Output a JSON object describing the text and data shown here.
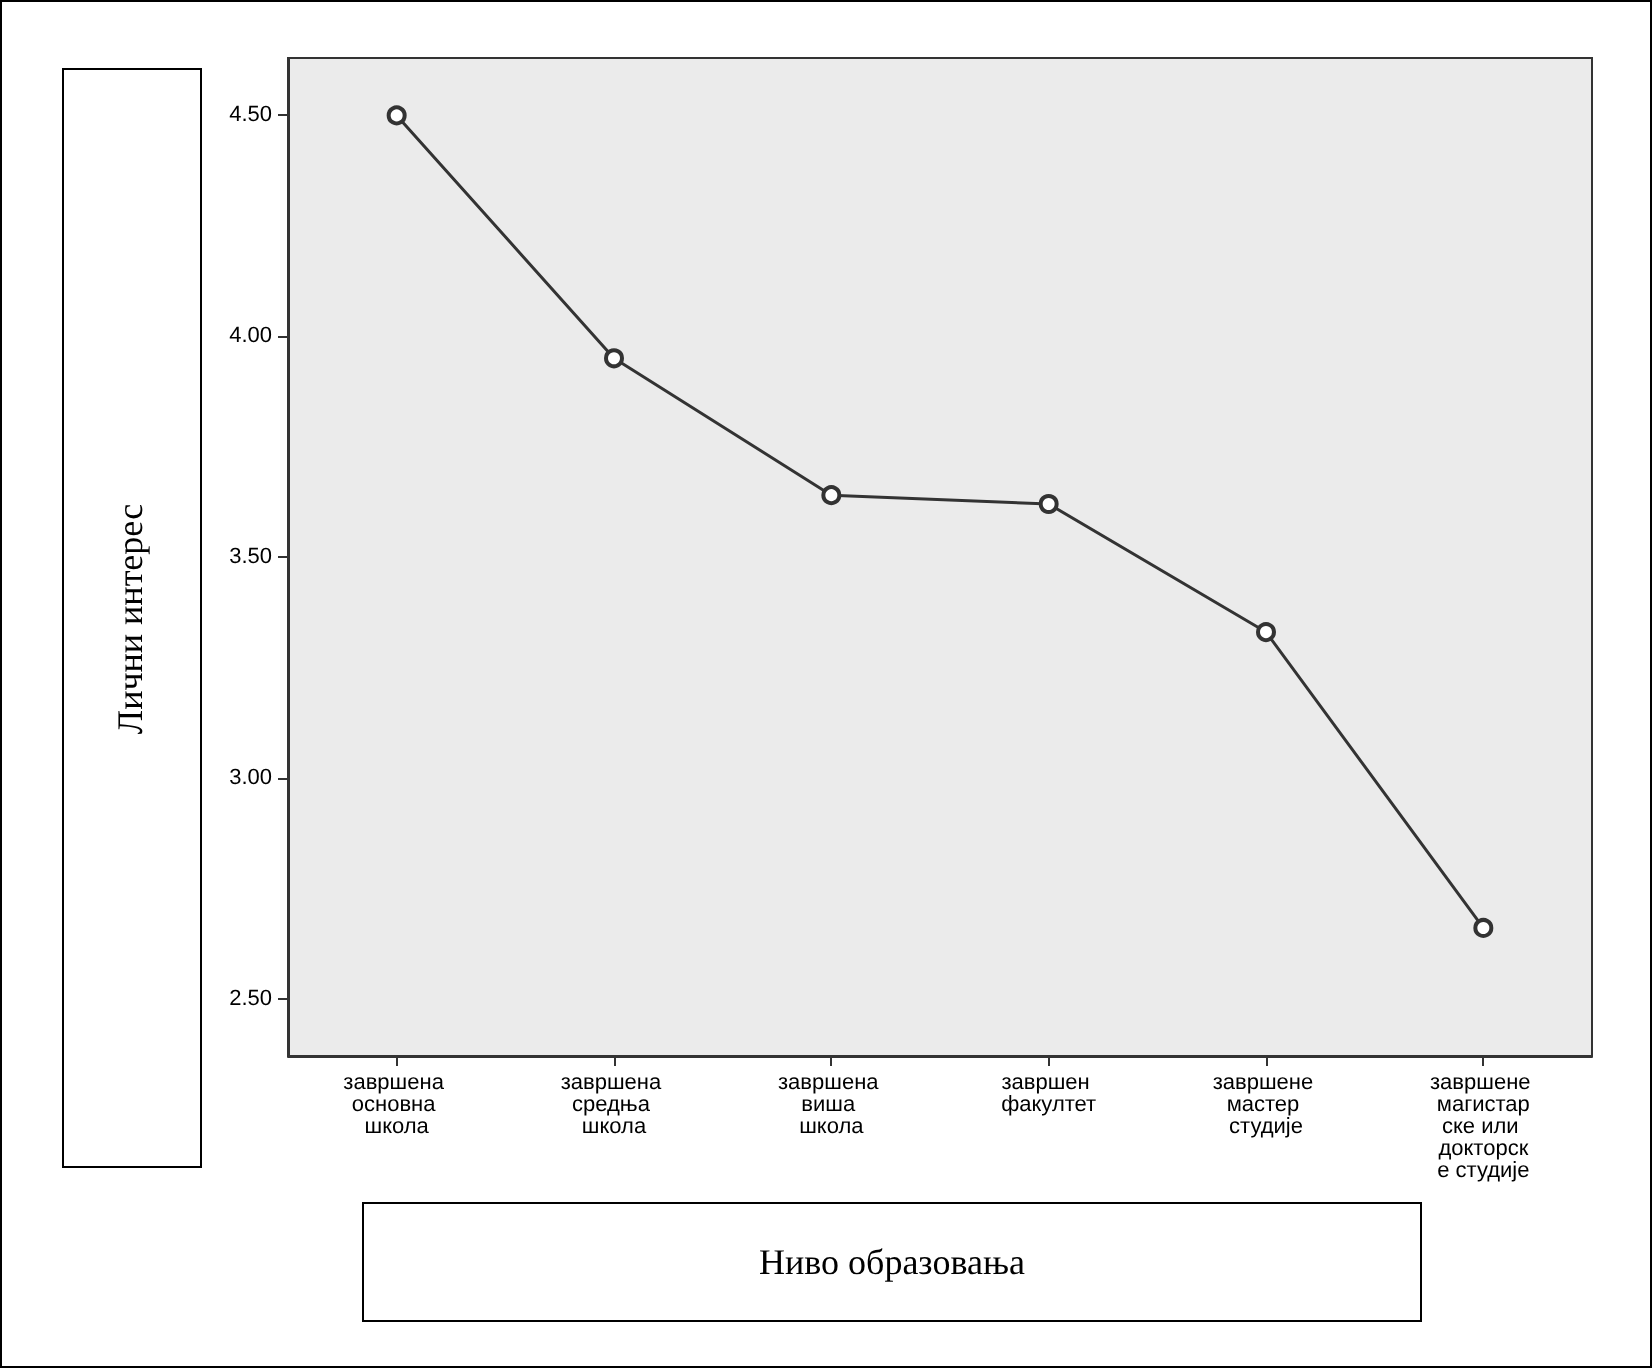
{
  "chart_data": {
    "type": "line",
    "xlabel": "Ниво образовања",
    "ylabel": "Лични интерес",
    "categories": [
      "завршена основна школа",
      "завршена средња школа",
      "завршена виша школа",
      "завршен факултет",
      "завршене мастер студије",
      "завршене магистарске или докторске студије"
    ],
    "series": [
      {
        "color": "#333333",
        "values": [
          4.5,
          3.95,
          3.64,
          3.62,
          3.33,
          2.66
        ]
      }
    ],
    "ylim": [
      2.37,
      4.63
    ],
    "yticks": [
      {
        "value": 2.5,
        "label": "2.50"
      },
      {
        "value": 3,
        "label": "3.00"
      },
      {
        "value": 3.5,
        "label": "3.50"
      },
      {
        "value": 4,
        "label": "4.00"
      },
      {
        "value": 4.5,
        "label": "4.50"
      }
    ],
    "grid": false,
    "marker": "circle",
    "line_style": "solid"
  }
}
